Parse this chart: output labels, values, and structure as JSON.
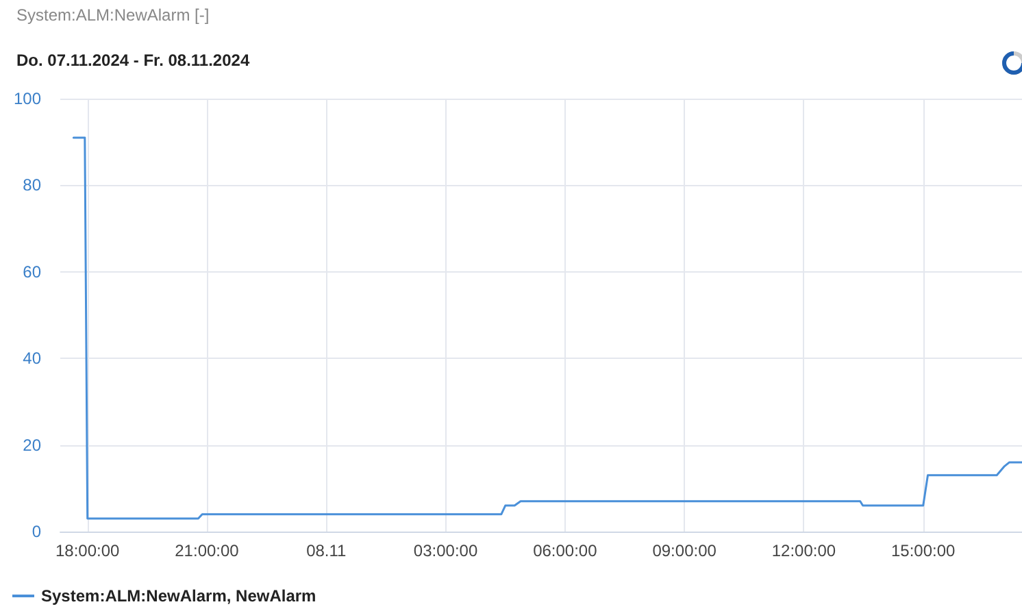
{
  "chart_data": {
    "type": "line",
    "title": "System:ALM:NewAlarm [-]",
    "subtitle": "Do. 07.11.2024 - Fr. 08.11.2024",
    "x": [
      "2024-11-07T17:39",
      "2024-11-07T17:56",
      "2024-11-07T18:00",
      "2024-11-07T20:47",
      "2024-11-07T20:53",
      "2024-11-08T04:24",
      "2024-11-08T04:30",
      "2024-11-08T04:44",
      "2024-11-08T04:53",
      "2024-11-08T13:25",
      "2024-11-08T13:29",
      "2024-11-08T15:00",
      "2024-11-08T15:07",
      "2024-11-08T16:51",
      "2024-11-08T17:02",
      "2024-11-08T17:10",
      "2024-11-08T17:29"
    ],
    "series": [
      {
        "name": "System:ALM:NewAlarm, NewAlarm",
        "color": "#4a90d9",
        "values": [
          91,
          91,
          3,
          3,
          4,
          4,
          6,
          6,
          7,
          7,
          6,
          6,
          13,
          13,
          15,
          16,
          16
        ]
      }
    ],
    "xlim": [
      "2024-11-07T17:19",
      "2024-11-08T17:29"
    ],
    "xticks": [
      {
        "value": "2024-11-07T18:00",
        "label": "18:00:00"
      },
      {
        "value": "2024-11-07T21:00",
        "label": "21:00:00"
      },
      {
        "value": "2024-11-08T00:00",
        "label": "08.11"
      },
      {
        "value": "2024-11-08T03:00",
        "label": "03:00:00"
      },
      {
        "value": "2024-11-08T06:00",
        "label": "06:00:00"
      },
      {
        "value": "2024-11-08T09:00",
        "label": "09:00:00"
      },
      {
        "value": "2024-11-08T12:00",
        "label": "12:00:00"
      },
      {
        "value": "2024-11-08T15:00",
        "label": "15:00:00"
      }
    ],
    "ylim": [
      0,
      100
    ],
    "yticks": [
      0,
      20,
      40,
      60,
      80,
      100
    ],
    "grid": true,
    "legend": "bottom left",
    "marker": "none",
    "line_style": "solid"
  }
}
